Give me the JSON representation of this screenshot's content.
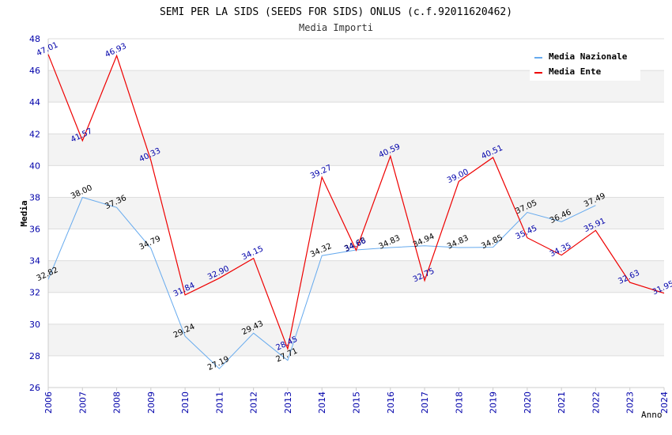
{
  "chart_data": {
    "type": "line",
    "title": "SEMI PER LA SIDS (SEEDS FOR SIDS) ONLUS (c.f.92011620462)",
    "subtitle": "Media Importi",
    "xlabel": "Anno",
    "ylabel": "Media",
    "ylim": [
      26,
      48
    ],
    "yticks": [
      26,
      28,
      30,
      32,
      34,
      36,
      38,
      40,
      42,
      44,
      46,
      48
    ],
    "grid": true,
    "legend_position": "top-right",
    "x": [
      "2006",
      "2007",
      "2008",
      "2009",
      "2010",
      "2011",
      "2012",
      "2013",
      "2014",
      "2015",
      "2016",
      "2017",
      "2018",
      "2019",
      "2020",
      "2021",
      "2022",
      "2023",
      "2024"
    ],
    "series": [
      {
        "name": "Media Nazionale",
        "color": "#66aaee",
        "values": [
          32.82,
          38.0,
          37.36,
          34.79,
          29.24,
          27.19,
          29.43,
          27.71,
          34.32,
          34.68,
          34.83,
          34.94,
          34.83,
          34.85,
          37.05,
          36.46,
          37.49,
          null,
          null
        ],
        "labels": [
          "32.82",
          "38.00",
          "37.36",
          "34.79",
          "29.24",
          "27.19",
          "29.43",
          "27.71",
          "34.32",
          "34.68",
          "34.83",
          "34.94",
          "34.83",
          "34.85",
          "37.05",
          "36.46",
          "37.49",
          null,
          null
        ]
      },
      {
        "name": "Media Ente",
        "color": "#ee0000",
        "values": [
          47.01,
          41.57,
          46.93,
          40.33,
          31.84,
          32.9,
          34.15,
          28.45,
          39.27,
          34.66,
          40.59,
          32.75,
          39.0,
          40.51,
          35.45,
          34.35,
          35.91,
          32.63,
          31.95
        ],
        "labels": [
          "47.01",
          "41.57",
          "46.93",
          "40.33",
          "31.84",
          "32.90",
          "34.15",
          "28.45",
          "39.27",
          "34.66",
          "40.59",
          "32.75",
          "39.00",
          "40.51",
          "35.45",
          "34.35",
          "35.91",
          "32.63",
          "31.95"
        ]
      }
    ]
  }
}
